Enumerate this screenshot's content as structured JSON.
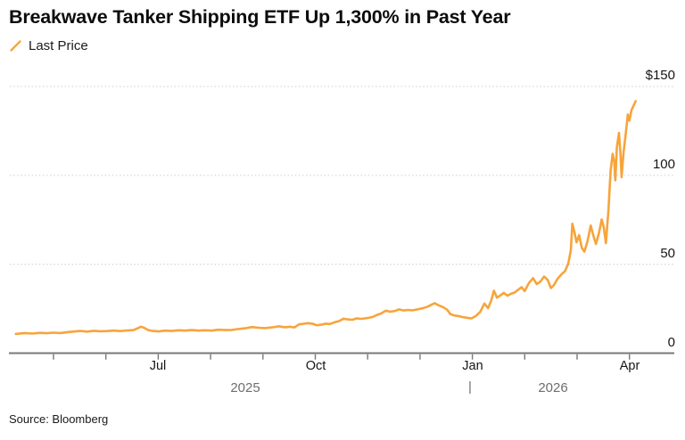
{
  "title": "Breakwave Tanker Shipping ETF Up 1,300% in Past Year",
  "legend": {
    "label": "Last Price"
  },
  "source": "Source: Bloomberg",
  "colors": {
    "line": "#F7A43B",
    "axis": "#77787B",
    "grid": "#D8D8D8",
    "text": "#141414",
    "muted": "#6E6E73"
  },
  "chart_data": {
    "type": "line",
    "title": "Breakwave Tanker Shipping ETF Up 1,300% in Past Year",
    "series_name": "Last Price",
    "y_unit": "USD",
    "ylim": [
      0,
      158
    ],
    "grid": "dotted-horizontal",
    "legend_position": "top-left",
    "y_ticks": [
      {
        "label": "$150",
        "value": 150
      },
      {
        "label": "100",
        "value": 100
      },
      {
        "label": "50",
        "value": 50
      },
      {
        "label": "0",
        "value": 0
      }
    ],
    "x_unit": "months_since_2025-05-01",
    "x_range": [
      -0.85,
      11.3
    ],
    "minor_tick_months": [
      0,
      1,
      2,
      3,
      4,
      5,
      6,
      7,
      8,
      9,
      10,
      11
    ],
    "x_ticks": [
      {
        "label": "Jul",
        "m": 2
      },
      {
        "label": "Oct",
        "m": 5
      },
      {
        "label": "Jan",
        "m": 8
      },
      {
        "label": "Apr",
        "m": 11
      }
    ],
    "year_labels": [
      {
        "label": "2025",
        "m": 3.66
      },
      {
        "label": "2026",
        "m": 9.54
      }
    ],
    "year_separator_m": 7.96,
    "points": [
      [
        -0.72,
        10.8
      ],
      [
        -0.55,
        11.3
      ],
      [
        -0.4,
        11.0
      ],
      [
        -0.26,
        11.4
      ],
      [
        -0.13,
        11.2
      ],
      [
        0.0,
        11.5
      ],
      [
        0.13,
        11.3
      ],
      [
        0.26,
        11.8
      ],
      [
        0.38,
        12.1
      ],
      [
        0.51,
        12.5
      ],
      [
        0.64,
        12.1
      ],
      [
        0.77,
        12.6
      ],
      [
        0.9,
        12.3
      ],
      [
        1.02,
        12.4
      ],
      [
        1.15,
        12.7
      ],
      [
        1.28,
        12.4
      ],
      [
        1.41,
        12.8
      ],
      [
        1.53,
        13.0
      ],
      [
        1.62,
        14.2
      ],
      [
        1.67,
        14.9
      ],
      [
        1.73,
        14.3
      ],
      [
        1.81,
        13.0
      ],
      [
        1.9,
        12.5
      ],
      [
        2.01,
        12.2
      ],
      [
        2.13,
        12.7
      ],
      [
        2.26,
        12.5
      ],
      [
        2.39,
        12.9
      ],
      [
        2.51,
        12.7
      ],
      [
        2.64,
        13.0
      ],
      [
        2.77,
        12.7
      ],
      [
        2.89,
        12.9
      ],
      [
        3.02,
        12.7
      ],
      [
        3.15,
        13.2
      ],
      [
        3.28,
        13.0
      ],
      [
        3.41,
        13.1
      ],
      [
        3.53,
        13.6
      ],
      [
        3.66,
        14.0
      ],
      [
        3.79,
        14.7
      ],
      [
        3.92,
        14.3
      ],
      [
        4.04,
        14.1
      ],
      [
        4.17,
        14.5
      ],
      [
        4.3,
        15.1
      ],
      [
        4.43,
        14.6
      ],
      [
        4.51,
        14.9
      ],
      [
        4.6,
        14.5
      ],
      [
        4.69,
        16.2
      ],
      [
        4.77,
        16.5
      ],
      [
        4.86,
        16.9
      ],
      [
        4.94,
        16.6
      ],
      [
        5.03,
        15.7
      ],
      [
        5.11,
        16.0
      ],
      [
        5.2,
        16.6
      ],
      [
        5.28,
        16.4
      ],
      [
        5.37,
        17.4
      ],
      [
        5.45,
        18.0
      ],
      [
        5.54,
        19.4
      ],
      [
        5.62,
        19.0
      ],
      [
        5.71,
        18.8
      ],
      [
        5.79,
        19.6
      ],
      [
        5.88,
        19.3
      ],
      [
        6.0,
        19.8
      ],
      [
        6.09,
        20.3
      ],
      [
        6.18,
        21.5
      ],
      [
        6.26,
        22.4
      ],
      [
        6.35,
        23.9
      ],
      [
        6.43,
        23.3
      ],
      [
        6.52,
        23.7
      ],
      [
        6.6,
        24.6
      ],
      [
        6.69,
        24.0
      ],
      [
        6.77,
        24.3
      ],
      [
        6.86,
        24.1
      ],
      [
        6.98,
        24.8
      ],
      [
        7.07,
        25.4
      ],
      [
        7.15,
        26.2
      ],
      [
        7.23,
        27.4
      ],
      [
        7.28,
        28.1
      ],
      [
        7.35,
        27.0
      ],
      [
        7.44,
        25.9
      ],
      [
        7.52,
        24.4
      ],
      [
        7.58,
        22.0
      ],
      [
        7.65,
        21.2
      ],
      [
        7.73,
        20.9
      ],
      [
        7.81,
        20.3
      ],
      [
        7.9,
        19.9
      ],
      [
        7.99,
        19.6
      ],
      [
        8.07,
        21.0
      ],
      [
        8.15,
        23.2
      ],
      [
        8.23,
        27.9
      ],
      [
        8.3,
        25.3
      ],
      [
        8.36,
        29.5
      ],
      [
        8.41,
        35.1
      ],
      [
        8.47,
        31.2
      ],
      [
        8.54,
        32.6
      ],
      [
        8.6,
        33.9
      ],
      [
        8.67,
        32.3
      ],
      [
        8.74,
        33.4
      ],
      [
        8.81,
        34.1
      ],
      [
        8.88,
        35.8
      ],
      [
        8.94,
        37.1
      ],
      [
        9.0,
        34.9
      ],
      [
        9.08,
        39.5
      ],
      [
        9.16,
        42.2
      ],
      [
        9.23,
        38.9
      ],
      [
        9.3,
        40.3
      ],
      [
        9.37,
        43.1
      ],
      [
        9.44,
        41.2
      ],
      [
        9.5,
        36.6
      ],
      [
        9.56,
        38.4
      ],
      [
        9.63,
        42.0
      ],
      [
        9.7,
        44.3
      ],
      [
        9.77,
        46.2
      ],
      [
        9.83,
        50.1
      ],
      [
        9.88,
        57.8
      ],
      [
        9.91,
        72.8
      ],
      [
        9.95,
        68.0
      ],
      [
        9.99,
        62.3
      ],
      [
        10.04,
        66.4
      ],
      [
        10.09,
        59.2
      ],
      [
        10.14,
        57.1
      ],
      [
        10.2,
        63.0
      ],
      [
        10.26,
        71.8
      ],
      [
        10.31,
        66.2
      ],
      [
        10.36,
        61.4
      ],
      [
        10.42,
        67.9
      ],
      [
        10.47,
        75.2
      ],
      [
        10.51,
        70.8
      ],
      [
        10.55,
        61.9
      ],
      [
        10.6,
        80.5
      ],
      [
        10.64,
        102.7
      ],
      [
        10.68,
        112.1
      ],
      [
        10.71,
        107.6
      ],
      [
        10.73,
        97.2
      ],
      [
        10.76,
        115.8
      ],
      [
        10.8,
        123.9
      ],
      [
        10.83,
        111.9
      ],
      [
        10.85,
        99.0
      ],
      [
        10.89,
        113.4
      ],
      [
        10.93,
        123.5
      ],
      [
        10.97,
        134.2
      ],
      [
        11.0,
        130.8
      ],
      [
        11.04,
        136.6
      ],
      [
        11.08,
        139.3
      ],
      [
        11.12,
        141.8
      ]
    ]
  }
}
